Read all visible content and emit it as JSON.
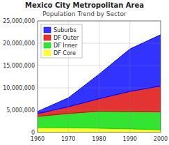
{
  "chart_data": {
    "type": "area",
    "stacked": true,
    "title": "Mexico City Metropolitan Area",
    "subtitle": "Population Trend by Sector",
    "x": [
      1960,
      1970,
      1980,
      1990,
      2000
    ],
    "xlim": [
      1960,
      2000
    ],
    "xticks": [
      1960,
      1970,
      1980,
      1990,
      2000
    ],
    "ylim": [
      0,
      25000000
    ],
    "yticks": [
      0,
      {
        "value": 5000000,
        "label": "5,000,000"
      },
      {
        "value": 10000000,
        "label": "10,000,000"
      },
      {
        "value": 15000000,
        "label": "15,000,000"
      },
      {
        "value": 20000000,
        "label": "20,000,000"
      },
      {
        "value": 25000000,
        "label": "25,000,000"
      }
    ],
    "grid": true,
    "legend": "upper-left",
    "series": [
      {
        "name": "DF Core",
        "color": "#ffff00",
        "values": [
          1100000,
          1050000,
          950000,
          800000,
          600000
        ]
      },
      {
        "name": "DF Inner",
        "color": "#00dd00",
        "values": [
          2500000,
          3200000,
          3800000,
          3900000,
          4000000
        ]
      },
      {
        "name": "DF Outer",
        "color": "#dd0000",
        "values": [
          600000,
          1500000,
          2800000,
          4500000,
          5800000
        ]
      },
      {
        "name": "Suburbs",
        "color": "#0000ff",
        "values": [
          500000,
          2000000,
          5500000,
          9500000,
          11500000
        ]
      }
    ]
  }
}
